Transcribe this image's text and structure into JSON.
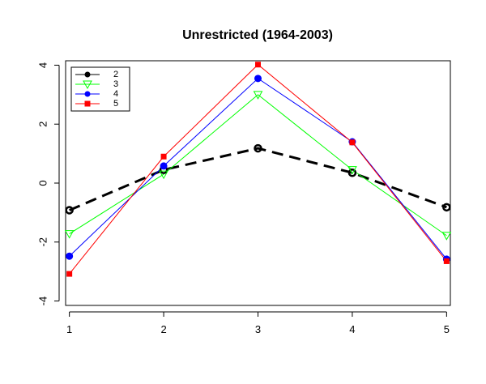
{
  "chart_data": {
    "type": "line",
    "title": "Unrestricted (1964-2003)",
    "xlabel": "",
    "ylabel": "",
    "x": [
      1,
      2,
      3,
      4,
      5
    ],
    "xlim": [
      0.96,
      5.04
    ],
    "ylim": [
      -4.15,
      4.15
    ],
    "x_ticks": [
      "1",
      "2",
      "3",
      "4",
      "5"
    ],
    "y_ticks": [
      "-4",
      "-2",
      "0",
      "2",
      "4"
    ],
    "grid": false,
    "legend_position": "top-left",
    "series": [
      {
        "name": "2",
        "values": [
          -0.92,
          0.45,
          1.18,
          0.35,
          -0.82
        ],
        "color": "#000000",
        "marker": "open-circle",
        "line": "dashed"
      },
      {
        "name": "3",
        "values": [
          -1.72,
          0.3,
          3.0,
          0.45,
          -1.78
        ],
        "color": "#00ff00",
        "marker": "open-triangle-down",
        "line": "solid"
      },
      {
        "name": "4",
        "values": [
          -2.48,
          0.58,
          3.55,
          1.4,
          -2.58
        ],
        "color": "#0000ff",
        "marker": "filled-circle",
        "line": "solid"
      },
      {
        "name": "5",
        "values": [
          -3.08,
          0.9,
          4.02,
          1.38,
          -2.65
        ],
        "color": "#ff0000",
        "marker": "filled-square",
        "line": "solid"
      }
    ]
  }
}
